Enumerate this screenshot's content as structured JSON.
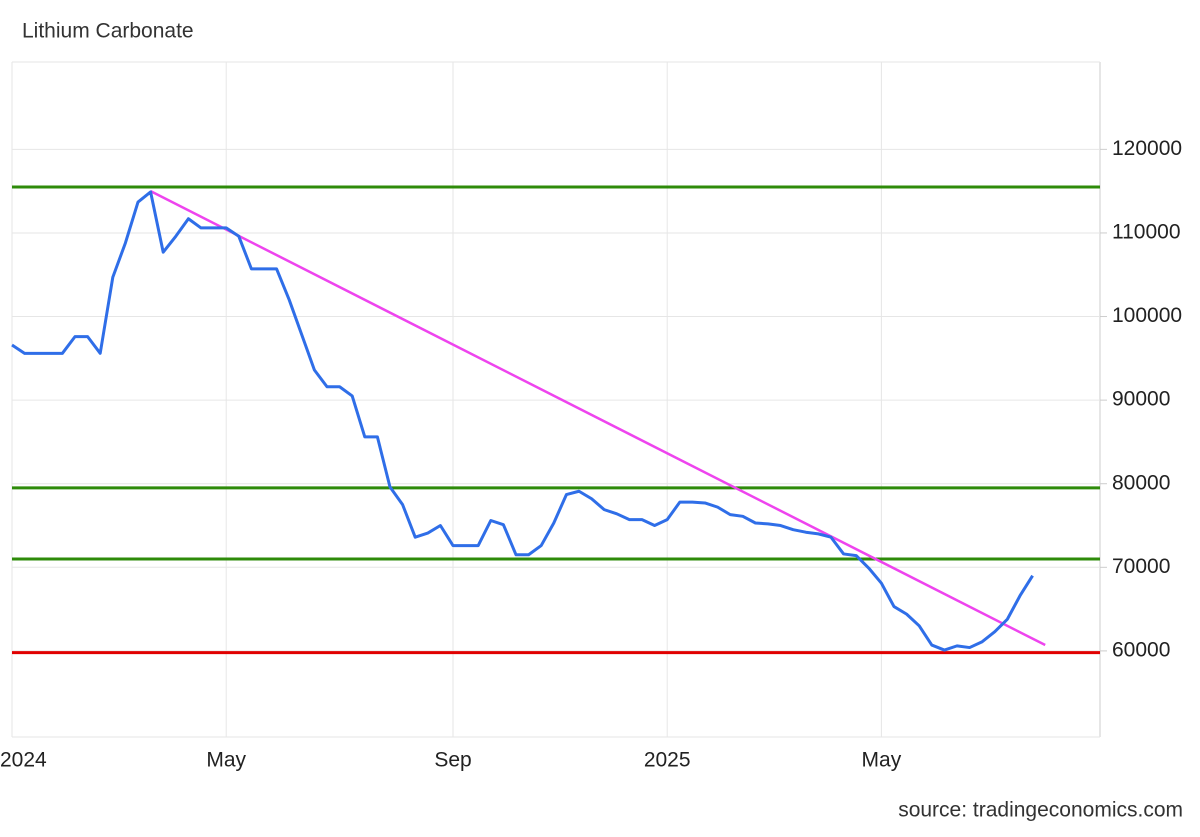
{
  "chart_data": {
    "type": "line",
    "title": "Lithium Carbonate",
    "source": "source: tradingeconomics.com",
    "categories": [
      "2024",
      null,
      null,
      null,
      null,
      null,
      null,
      null,
      null,
      null,
      null,
      null,
      null,
      null,
      null,
      null,
      null,
      "May",
      null,
      null,
      null,
      null,
      null,
      null,
      null,
      null,
      null,
      null,
      null,
      null,
      null,
      null,
      null,
      null,
      null,
      "Sep",
      null,
      null,
      null,
      null,
      null,
      null,
      null,
      null,
      null,
      null,
      null,
      null,
      null,
      null,
      null,
      null,
      "2025",
      null,
      null,
      null,
      null,
      null,
      null,
      null,
      null,
      null,
      null,
      null,
      null,
      null,
      null,
      null,
      null,
      "May",
      null,
      null,
      null,
      null,
      null,
      null,
      null,
      null,
      null,
      null,
      null,
      null,
      null
    ],
    "series": [
      {
        "name": "Lithium Carbonate",
        "color": "#2f6ee8",
        "values": [
          96600,
          95600,
          95600,
          95600,
          95600,
          97600,
          97600,
          95600,
          104700,
          108800,
          113700,
          114900,
          107700,
          109600,
          111700,
          110600,
          110600,
          110600,
          109600,
          105700,
          105700,
          105700,
          102000,
          97800,
          93600,
          91600,
          91600,
          90500,
          85600,
          85600,
          79600,
          77500,
          73600,
          74100,
          75000,
          72600,
          72600,
          72600,
          75600,
          75100,
          71500,
          71500,
          72600,
          75300,
          78700,
          79100,
          78200,
          76900,
          76400,
          75700,
          75700,
          75000,
          75700,
          77800,
          77800,
          77700,
          77200,
          76300,
          76100,
          75300,
          75200,
          75000,
          74500,
          74200,
          74000,
          73600,
          71600,
          71400,
          69900,
          68100,
          65300,
          64400,
          63000,
          60700,
          60100,
          60600,
          60400,
          61100,
          62300,
          63800,
          66600,
          69000,
          null
        ]
      }
    ],
    "reference_lines": [
      {
        "value": 115500,
        "color": "#2e8b0a"
      },
      {
        "value": 79500,
        "color": "#2e8b0a"
      },
      {
        "value": 71000,
        "color": "#2e8b0a"
      },
      {
        "value": 59800,
        "color": "#e00000"
      }
    ],
    "trend_line": {
      "color": "#ee44ee",
      "start": 11,
      "end": 82,
      "values": [
        115000,
        60700
      ]
    },
    "ylim": [
      49700,
      130450
    ],
    "yticks": [
      60000,
      70000,
      80000,
      90000,
      100000,
      110000,
      120000
    ],
    "grid": true
  }
}
